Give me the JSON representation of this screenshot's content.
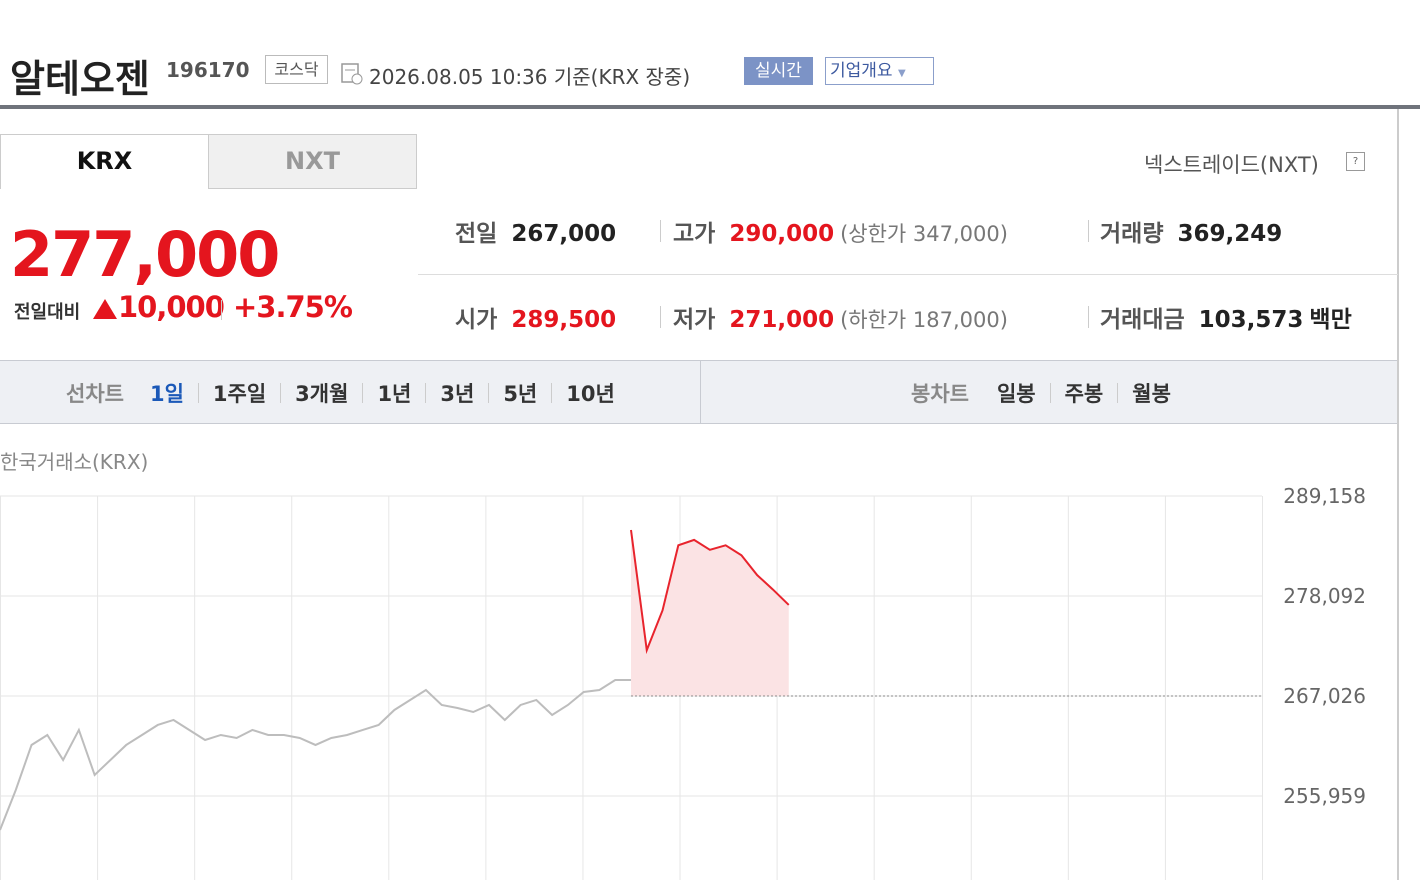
{
  "header": {
    "name": "알테오젠",
    "code": "196170",
    "market": "코스닥",
    "timestamp": "2026.08.05 10:36 기준(KRX 장중)",
    "realtime": "실시간",
    "company_info": "기업개요"
  },
  "tabs": [
    "KRX",
    "NXT"
  ],
  "nxt_link": "넥스트레이드(NXT)",
  "price": {
    "current": "277,000",
    "change_label": "전일대비",
    "change": "10,000",
    "change_pct": "+3.75%"
  },
  "stats": [
    {
      "label": "전일",
      "value": "267,000"
    },
    {
      "label": "고가",
      "value": "290,000",
      "note": "(상한가 347,000)"
    },
    {
      "label": "거래량",
      "value": "369,249"
    },
    {
      "label": "시가",
      "value": "289,500"
    },
    {
      "label": "저가",
      "value": "271,000",
      "note": "(하한가 187,000)"
    },
    {
      "label": "거래대금",
      "value": "103,573",
      "unit": "백만"
    }
  ],
  "chart_tabs": {
    "line_label": "선차트",
    "line_periods": [
      "1일",
      "1주일",
      "3개월",
      "1년",
      "3년",
      "5년",
      "10년"
    ],
    "candle_label": "봉차트",
    "candle_periods": [
      "일봉",
      "주봉",
      "월봉"
    ]
  },
  "chart_data": {
    "type": "line",
    "source": "한국거래소(KRX)",
    "ylim": [
      246660,
      289158
    ],
    "yticks": [
      {
        "value": 289158,
        "label": "289,158"
      },
      {
        "value": 278092,
        "label": "278,092"
      },
      {
        "value": 267026,
        "label": "267,026"
      },
      {
        "value": 255959,
        "label": "255,959"
      }
    ],
    "grid": true,
    "series": [
      {
        "color": "#bdbdbd",
        "values": [
          252198,
          256624,
          261604,
          262710,
          259944,
          263264,
          258284,
          259944,
          261604,
          262710,
          263817,
          264370,
          263264,
          262157,
          262710,
          262378,
          263264,
          262710,
          262710,
          262378,
          261604,
          262378,
          262710,
          263264,
          263817,
          265477,
          266583,
          267690,
          266030,
          265698,
          265255,
          266030,
          264370,
          266030,
          266583,
          264923,
          266030,
          267469,
          267690,
          268797,
          268797
        ]
      },
      {
        "color": "#e8242d",
        "fill": "#fbe3e4",
        "values": [
          null,
          null,
          null,
          null,
          null,
          null,
          null,
          null,
          null,
          null,
          null,
          null,
          null,
          null,
          null,
          null,
          null,
          null,
          null,
          null,
          null,
          null,
          null,
          null,
          null,
          null,
          null,
          null,
          null,
          null,
          null,
          null,
          null,
          null,
          null,
          null,
          null,
          null,
          null,
          null,
          285400,
          272100,
          276500,
          283700,
          284300,
          283200,
          283700,
          282600,
          280400,
          278800,
          277100
        ]
      }
    ]
  }
}
